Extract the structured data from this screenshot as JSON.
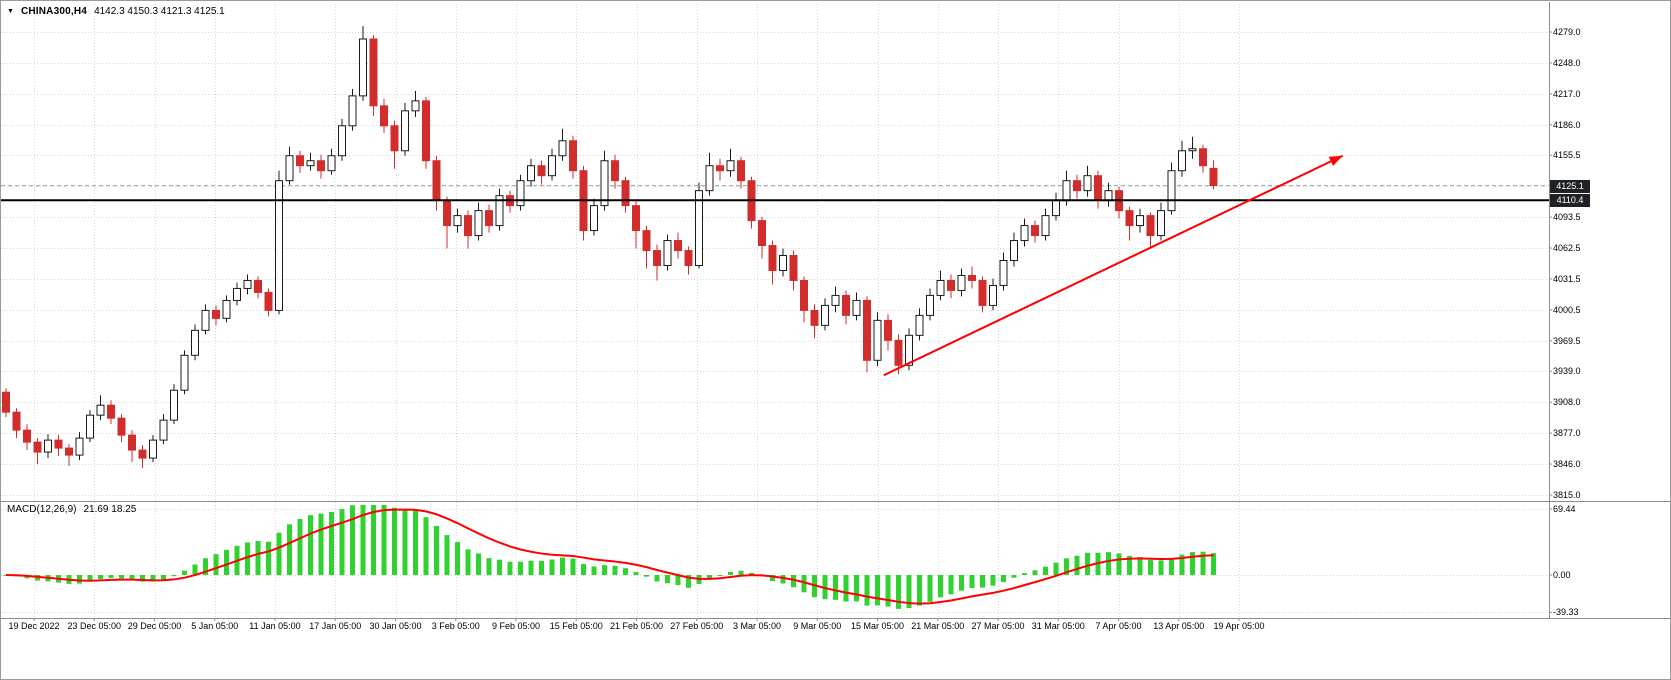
{
  "header": {
    "symbol": "CHINA300,H4",
    "ohlc": "4142.3 4150.3 4121.3 4125.1"
  },
  "macd": {
    "label": "MACD(12,26,9)",
    "values": "21.69 18.25"
  },
  "colors": {
    "grid": "#d6d6d6",
    "bull_body": "#ffffff",
    "bull_edge": "#1b1b1b",
    "bear": "#d22d2d",
    "hist": "#2fd32f",
    "signal": "#ff0000",
    "arrow": "#ff0000",
    "badge_bg": "#1e2126",
    "hline": "#000000",
    "bid_line": "#9aa4ad",
    "divider": "#8c8c8c"
  },
  "price_axis": {
    "bid_badge": "4125.1",
    "bid_value": 4125.1,
    "line_badge": "4110.4",
    "line_value": 4110.4,
    "labels": [
      {
        "text": "4279.0",
        "value": 4279
      },
      {
        "text": "4248.0",
        "value": 4248
      },
      {
        "text": "4217.0",
        "value": 4217
      },
      {
        "text": "4186.0",
        "value": 4186
      },
      {
        "text": "4155.5",
        "value": 4155.5
      },
      {
        "text": "4093.5",
        "value": 4093.5
      },
      {
        "text": "4062.5",
        "value": 4062.5
      },
      {
        "text": "4031.5",
        "value": 4031.5
      },
      {
        "text": "4000.5",
        "value": 4000.5
      },
      {
        "text": "3969.5",
        "value": 3969.5
      },
      {
        "text": "3939.0",
        "value": 3939
      },
      {
        "text": "3908.0",
        "value": 3908
      },
      {
        "text": "3877.0",
        "value": 3877
      },
      {
        "text": "3846.0",
        "value": 3846
      },
      {
        "text": "3815.0",
        "value": 3815
      }
    ]
  },
  "time_axis": {
    "labels": [
      "19 Dec 2022",
      "23 Dec 05:00",
      "29 Dec 05:00",
      "5 Jan 05:00",
      "11 Jan 05:00",
      "17 Jan 05:00",
      "30 Jan 05:00",
      "3 Feb 05:00",
      "9 Feb 05:00",
      "15 Feb 05:00",
      "21 Feb 05:00",
      "27 Feb 05:00",
      "3 Mar 05:00",
      "9 Mar 05:00",
      "15 Mar 05:00",
      "21 Mar 05:00",
      "27 Mar 05:00",
      "31 Mar 05:00",
      "7 Apr 05:00",
      "13 Apr 05:00",
      "19 Apr 05:00"
    ]
  },
  "chart_data": [
    {
      "type": "candlestick",
      "title": "CHINA300,H4",
      "ylim": [
        3815,
        4290
      ],
      "grid_prices": [
        4279,
        4248,
        4217,
        4186,
        4155.5,
        4124.5,
        4093.5,
        4062.5,
        4031.5,
        4000.5,
        3969.5,
        3939,
        3908,
        3877,
        3846,
        3815
      ],
      "o": [
        3918,
        3898,
        3880,
        3868,
        3858,
        3870,
        3862,
        3855,
        3872,
        3895,
        3905,
        3892,
        3875,
        3860,
        3852,
        3870,
        3890,
        3920,
        3955,
        3980,
        4000,
        3992,
        4010,
        4022,
        4030,
        4018,
        4000,
        4130,
        4155,
        4145,
        4150,
        4140,
        4155,
        4185,
        4215,
        4272,
        4205,
        4185,
        4160,
        4200,
        4210,
        4150,
        4110,
        4085,
        4095,
        4075,
        4100,
        4085,
        4115,
        4105,
        4130,
        4145,
        4135,
        4155,
        4170,
        4140,
        4080,
        4105,
        4150,
        4130,
        4105,
        4080,
        4060,
        4045,
        4070,
        4060,
        4045,
        4120,
        4145,
        4140,
        4150,
        4130,
        4090,
        4065,
        4040,
        4055,
        4030,
        4000,
        3985,
        4005,
        4015,
        3995,
        4010,
        3950,
        3990,
        3970,
        3945,
        3975,
        3995,
        4015,
        4030,
        4020,
        4035,
        4030,
        4005,
        4025,
        4050,
        4070,
        4085,
        4075,
        4095,
        4110,
        4130,
        4120,
        4135,
        4110,
        4120,
        4100,
        4085,
        4095,
        4075,
        4100,
        4140,
        4160,
        4162,
        4142.3
      ],
      "h": [
        3922,
        3902,
        3886,
        3872,
        3876,
        3875,
        3866,
        3878,
        3900,
        3915,
        3910,
        3896,
        3880,
        3865,
        3875,
        3896,
        3926,
        3960,
        3986,
        4006,
        4005,
        4015,
        4028,
        4036,
        4034,
        4022,
        4140,
        4164,
        4160,
        4158,
        4156,
        4162,
        4192,
        4222,
        4285,
        4276,
        4212,
        4190,
        4208,
        4220,
        4214,
        4155,
        4114,
        4102,
        4100,
        4108,
        4106,
        4122,
        4120,
        4136,
        4152,
        4150,
        4162,
        4182,
        4175,
        4145,
        4112,
        4160,
        4156,
        4134,
        4110,
        4085,
        4066,
        4076,
        4078,
        4064,
        4128,
        4158,
        4152,
        4162,
        4154,
        4134,
        4094,
        4070,
        4062,
        4060,
        4034,
        4006,
        4012,
        4024,
        4020,
        4018,
        4014,
        3998,
        3996,
        3976,
        3982,
        4002,
        4022,
        4040,
        4036,
        4042,
        4044,
        4034,
        4032,
        4058,
        4078,
        4092,
        4090,
        4102,
        4118,
        4140,
        4136,
        4145,
        4140,
        4128,
        4124,
        4104,
        4102,
        4098,
        4108,
        4148,
        4170,
        4174,
        4166,
        4150.3
      ],
      "l": [
        3893,
        3872,
        3860,
        3846,
        3852,
        3854,
        3844,
        3850,
        3868,
        3890,
        3886,
        3868,
        3848,
        3842,
        3848,
        3866,
        3886,
        3916,
        3950,
        3976,
        3985,
        3988,
        4005,
        4016,
        4012,
        3994,
        3996,
        4126,
        4138,
        4140,
        4132,
        4136,
        4150,
        4180,
        4210,
        4195,
        4178,
        4142,
        4155,
        4194,
        4142,
        4100,
        4062,
        4078,
        4062,
        4070,
        4078,
        4080,
        4098,
        4100,
        4124,
        4126,
        4130,
        4150,
        4132,
        4070,
        4075,
        4100,
        4122,
        4098,
        4062,
        4042,
        4030,
        4040,
        4052,
        4036,
        4042,
        4115,
        4130,
        4134,
        4122,
        4082,
        4052,
        4026,
        4034,
        4020,
        3988,
        3972,
        3980,
        3998,
        3986,
        3990,
        3938,
        3944,
        3960,
        3936,
        3940,
        3970,
        3990,
        4010,
        4012,
        4014,
        4022,
        3998,
        4000,
        4020,
        4044,
        4064,
        4068,
        4070,
        4090,
        4105,
        4112,
        4114,
        4102,
        4104,
        4092,
        4070,
        4078,
        4062,
        4070,
        4096,
        4134,
        4152,
        4138,
        4121.3
      ],
      "c": [
        3898,
        3880,
        3868,
        3858,
        3870,
        3862,
        3855,
        3872,
        3895,
        3905,
        3892,
        3875,
        3860,
        3852,
        3870,
        3890,
        3920,
        3955,
        3980,
        4000,
        3992,
        4010,
        4022,
        4030,
        4018,
        4000,
        4130,
        4155,
        4145,
        4150,
        4140,
        4155,
        4185,
        4215,
        4272,
        4205,
        4185,
        4160,
        4200,
        4210,
        4150,
        4110,
        4085,
        4095,
        4075,
        4100,
        4085,
        4115,
        4105,
        4130,
        4145,
        4135,
        4155,
        4170,
        4140,
        4080,
        4105,
        4150,
        4130,
        4105,
        4080,
        4060,
        4045,
        4070,
        4060,
        4045,
        4120,
        4145,
        4140,
        4150,
        4130,
        4090,
        4065,
        4040,
        4055,
        4030,
        4000,
        3985,
        4005,
        4015,
        3995,
        4010,
        3950,
        3990,
        3970,
        3945,
        3975,
        3995,
        4015,
        4030,
        4020,
        4035,
        4030,
        4005,
        4025,
        4050,
        4070,
        4085,
        4075,
        4095,
        4110,
        4130,
        4120,
        4135,
        4110,
        4120,
        4100,
        4085,
        4095,
        4075,
        4100,
        4140,
        4160,
        4162,
        4145,
        4125.1
      ]
    },
    {
      "type": "bar",
      "title": "MACD(12,26,9)",
      "params": {
        "fast": 12,
        "slow": 26,
        "signal": 9
      },
      "derived_from": "close",
      "axis_labels": [
        {
          "text": "69.44",
          "value": 69.44
        },
        {
          "text": "0.00",
          "value": 0
        },
        {
          "text": "-39.33",
          "value": -39.33
        }
      ],
      "display_values": {
        "macd": "21.69",
        "signal": "18.25"
      },
      "ylim": [
        -45,
        75
      ],
      "legend_position": "top-left"
    }
  ],
  "annotations": {
    "trend_arrow": {
      "color": "#ff0000",
      "from": {
        "bar": 83.6,
        "price": 3935
      },
      "to": {
        "bar": 127.3,
        "price": 4155
      }
    },
    "hline": {
      "price": 4110.4
    },
    "bid_line": {
      "price": 4125.1
    }
  }
}
